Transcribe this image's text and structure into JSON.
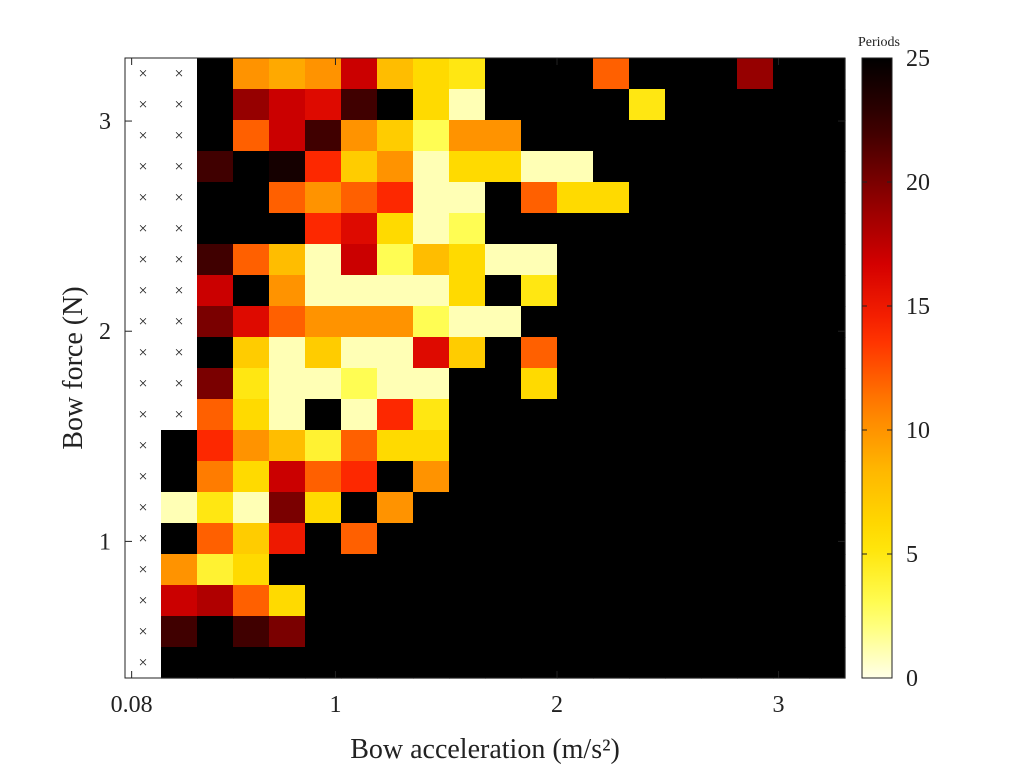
{
  "chart_data": {
    "type": "heatmap",
    "xlabel": "Bow acceleration (m/s²)",
    "ylabel": "Bow force (N)",
    "colorbar_label": "Periods",
    "x_range": [
      0.05,
      3.3
    ],
    "y_range": [
      0.35,
      3.3
    ],
    "x_ticks": [
      {
        "v": 0.08,
        "label": "0.08"
      },
      {
        "v": 1,
        "label": "1"
      },
      {
        "v": 2,
        "label": "2"
      },
      {
        "v": 3,
        "label": "3"
      }
    ],
    "y_ticks": [
      {
        "v": 1,
        "label": "1"
      },
      {
        "v": 2,
        "label": "2"
      },
      {
        "v": 3,
        "label": "3"
      }
    ],
    "colorbar": {
      "min": 0,
      "max": 25,
      "ticks": [
        {
          "v": 0,
          "label": "0"
        },
        {
          "v": 5,
          "label": "5"
        },
        {
          "v": 10,
          "label": "10"
        },
        {
          "v": 15,
          "label": "15"
        },
        {
          "v": 20,
          "label": "20"
        },
        {
          "v": 25,
          "label": "25"
        }
      ]
    },
    "colormap": [
      "#000000",
      "#3a0000",
      "#8a0000",
      "#d40000",
      "#ff2a00",
      "#ff7a00",
      "#ffb800",
      "#ffe100",
      "#ffff5a",
      "#ffffe8"
    ],
    "no_data_marker": "×",
    "columns": 20,
    "rows": 20,
    "cells_top_to_bottom": [
      [
        null,
        null,
        25,
        10,
        9,
        10,
        17,
        8,
        6,
        5,
        25,
        25,
        25,
        12,
        25,
        25,
        25,
        19,
        25,
        25
      ],
      [
        null,
        null,
        25,
        19,
        17,
        16,
        22,
        25,
        6,
        1,
        25,
        25,
        25,
        25,
        5,
        25,
        25,
        25,
        25,
        25
      ],
      [
        null,
        null,
        25,
        12,
        17,
        22,
        10,
        7,
        3,
        10,
        10,
        25,
        25,
        25,
        25,
        25,
        25,
        25,
        25,
        25
      ],
      [
        null,
        null,
        22,
        25,
        24,
        14,
        7,
        10,
        1,
        6,
        6,
        1,
        1,
        25,
        25,
        25,
        25,
        25,
        25,
        25
      ],
      [
        null,
        null,
        25,
        25,
        12,
        10,
        12,
        14,
        1,
        1,
        25,
        12,
        6,
        6,
        25,
        25,
        25,
        25,
        25,
        25
      ],
      [
        null,
        null,
        25,
        25,
        25,
        14,
        16,
        6,
        1,
        3,
        25,
        25,
        25,
        25,
        25,
        25,
        25,
        25,
        25,
        25
      ],
      [
        null,
        null,
        22,
        12,
        8,
        1,
        17,
        3,
        8,
        6,
        1,
        1,
        25,
        25,
        25,
        25,
        25,
        25,
        25,
        25
      ],
      [
        null,
        null,
        17,
        25,
        10,
        1,
        1,
        1,
        1,
        6,
        25,
        5,
        25,
        25,
        25,
        25,
        25,
        25,
        25,
        25
      ],
      [
        null,
        null,
        20,
        16,
        12,
        10,
        10,
        10,
        3,
        1,
        1,
        25,
        25,
        25,
        25,
        25,
        25,
        25,
        25,
        25
      ],
      [
        null,
        null,
        25,
        7,
        1,
        7,
        1,
        1,
        16,
        7,
        25,
        12,
        25,
        25,
        25,
        25,
        25,
        25,
        25,
        25
      ],
      [
        null,
        null,
        20,
        5,
        1,
        1,
        3,
        1,
        1,
        25,
        25,
        6,
        25,
        25,
        25,
        25,
        25,
        25,
        25,
        25
      ],
      [
        null,
        null,
        12,
        6,
        1,
        25,
        1,
        14,
        5,
        25,
        25,
        25,
        25,
        25,
        25,
        25,
        25,
        25,
        25,
        25
      ],
      [
        null,
        25,
        14,
        10,
        8,
        4,
        12,
        6,
        6,
        25,
        25,
        25,
        25,
        25,
        25,
        25,
        25,
        25,
        25,
        25
      ],
      [
        null,
        25,
        11,
        6,
        17,
        12,
        14,
        25,
        10,
        25,
        25,
        25,
        25,
        25,
        25,
        25,
        25,
        25,
        25,
        25
      ],
      [
        null,
        1,
        5,
        1,
        20,
        6,
        25,
        10,
        25,
        25,
        25,
        25,
        25,
        25,
        25,
        25,
        25,
        25,
        25,
        25
      ],
      [
        null,
        25,
        12,
        7,
        15,
        25,
        12,
        25,
        25,
        25,
        25,
        25,
        25,
        25,
        25,
        25,
        25,
        25,
        25,
        25
      ],
      [
        null,
        10,
        4,
        6,
        25,
        25,
        25,
        25,
        25,
        25,
        25,
        25,
        25,
        25,
        25,
        25,
        25,
        25,
        25,
        25
      ],
      [
        null,
        17,
        18,
        12,
        6,
        25,
        25,
        25,
        25,
        25,
        25,
        25,
        25,
        25,
        25,
        25,
        25,
        25,
        25,
        25
      ],
      [
        null,
        22,
        25,
        22,
        20,
        25,
        25,
        25,
        25,
        25,
        25,
        25,
        25,
        25,
        25,
        25,
        25,
        25,
        25,
        25
      ],
      [
        null,
        25,
        25,
        25,
        25,
        25,
        25,
        25,
        25,
        25,
        25,
        25,
        25,
        25,
        25,
        25,
        25,
        25,
        25,
        25
      ]
    ]
  }
}
